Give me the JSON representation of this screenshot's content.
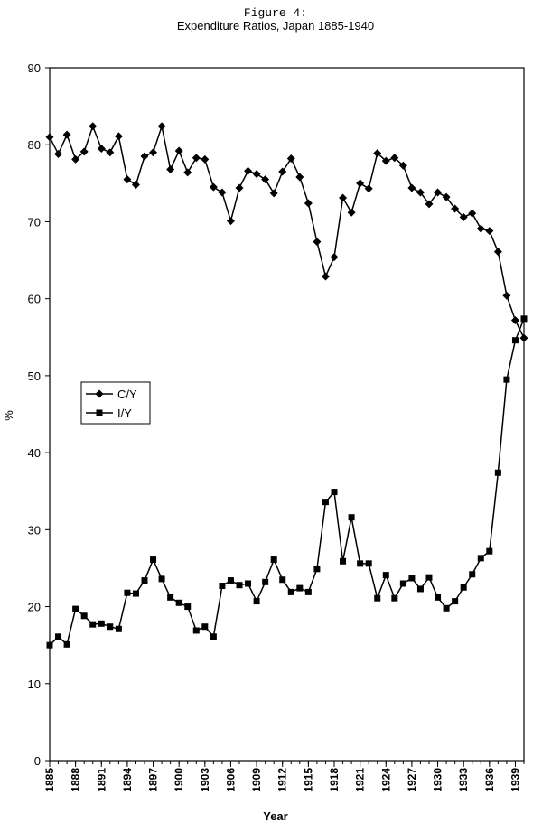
{
  "chart_data": {
    "type": "line",
    "title": "Figure 4:",
    "subtitle": "Expenditure Ratios, Japan 1885-1940",
    "xlabel": "Year",
    "ylabel": "%",
    "x": [
      1885,
      1886,
      1887,
      1888,
      1889,
      1890,
      1891,
      1892,
      1893,
      1894,
      1895,
      1896,
      1897,
      1898,
      1899,
      1900,
      1901,
      1902,
      1903,
      1904,
      1905,
      1906,
      1907,
      1908,
      1909,
      1910,
      1911,
      1912,
      1913,
      1914,
      1915,
      1916,
      1917,
      1918,
      1919,
      1920,
      1921,
      1922,
      1923,
      1924,
      1925,
      1926,
      1927,
      1928,
      1929,
      1930,
      1931,
      1932,
      1933,
      1934,
      1935,
      1936,
      1937,
      1938,
      1939,
      1940
    ],
    "series": [
      {
        "name": "C/Y",
        "color": "#000000",
        "marker": "diamond",
        "values": [
          81.0,
          78.8,
          81.3,
          78.1,
          79.1,
          82.4,
          79.5,
          79.0,
          81.1,
          75.5,
          74.8,
          78.5,
          79.0,
          82.4,
          76.8,
          79.2,
          76.4,
          78.3,
          78.1,
          74.5,
          73.8,
          70.1,
          74.4,
          76.6,
          76.2,
          75.5,
          73.7,
          76.5,
          78.2,
          75.8,
          72.4,
          67.4,
          62.9,
          65.4,
          73.1,
          71.2,
          75.0,
          74.3,
          78.9,
          77.9,
          78.3,
          77.3,
          74.4,
          73.8,
          72.3,
          73.8,
          73.2,
          71.7,
          70.6,
          71.1,
          69.1,
          68.8,
          66.1,
          60.4,
          57.2,
          54.9
        ]
      },
      {
        "name": "I/Y",
        "color": "#000000",
        "marker": "square",
        "values": [
          15.0,
          16.1,
          15.1,
          19.7,
          18.8,
          17.7,
          17.8,
          17.4,
          17.1,
          21.8,
          21.7,
          23.4,
          26.1,
          23.6,
          21.2,
          20.5,
          20.0,
          16.9,
          17.4,
          16.1,
          22.7,
          23.4,
          22.8,
          23.0,
          20.7,
          23.2,
          26.1,
          23.5,
          21.9,
          22.4,
          21.9,
          24.9,
          33.6,
          34.9,
          25.9,
          31.6,
          25.6,
          25.6,
          21.1,
          24.1,
          21.1,
          23.0,
          23.7,
          22.3,
          23.8,
          21.2,
          19.8,
          20.7,
          22.5,
          24.2,
          26.3,
          27.2,
          37.4,
          49.5,
          54.6,
          57.4
        ]
      }
    ],
    "xlim": [
      1885,
      1940
    ],
    "xticks": [
      1885,
      1888,
      1891,
      1894,
      1897,
      1900,
      1903,
      1906,
      1909,
      1912,
      1915,
      1918,
      1921,
      1924,
      1927,
      1930,
      1933,
      1936,
      1939
    ],
    "ylim": [
      0,
      90
    ],
    "yticks": [
      0,
      10,
      20,
      30,
      40,
      50,
      60,
      70,
      80,
      90
    ],
    "grid": false,
    "legend": "left"
  }
}
